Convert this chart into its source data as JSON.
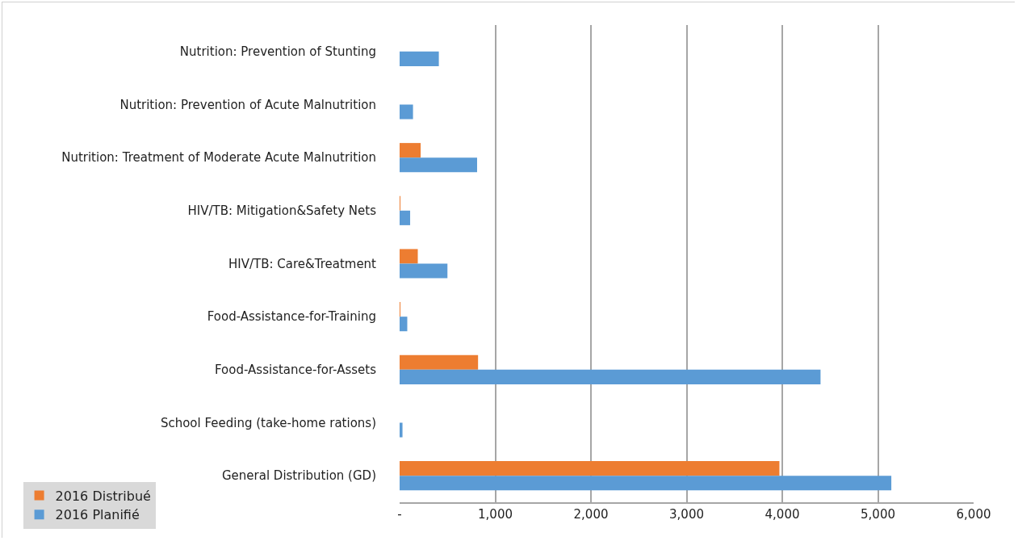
{
  "chart_data": {
    "type": "bar",
    "orientation": "horizontal",
    "categories": [
      "Nutrition: Prevention of Stunting",
      "Nutrition: Prevention of Acute Malnutrition",
      "Nutrition: Treatment of Moderate Acute Malnutrition",
      "HIV/TB: Mitigation&Safety Nets",
      "HIV/TB: Care&Treatment",
      "Food-Assistance-for-Training",
      "Food-Assistance-for-Assets",
      "School Feeding (take-home rations)",
      "General Distribution (GD)"
    ],
    "series": [
      {
        "name": "2016 Distribué",
        "color": "#ed7d31",
        "values": [
          0,
          0,
          220,
          5,
          190,
          5,
          820,
          0,
          3970
        ]
      },
      {
        "name": "2016 Planifié",
        "color": "#5b9bd5",
        "values": [
          410,
          140,
          810,
          110,
          500,
          80,
          4400,
          30,
          5140
        ]
      }
    ],
    "xlim": [
      0,
      6000
    ],
    "xticks": [
      {
        "value": 0,
        "label": "-"
      },
      {
        "value": 1000,
        "label": "1,000"
      },
      {
        "value": 2000,
        "label": "2,000"
      },
      {
        "value": 3000,
        "label": "3,000"
      },
      {
        "value": 4000,
        "label": "4,000"
      },
      {
        "value": 5000,
        "label": "5,000"
      },
      {
        "value": 6000,
        "label": "6,000"
      }
    ],
    "grid": "x",
    "legend": "bottom left"
  }
}
